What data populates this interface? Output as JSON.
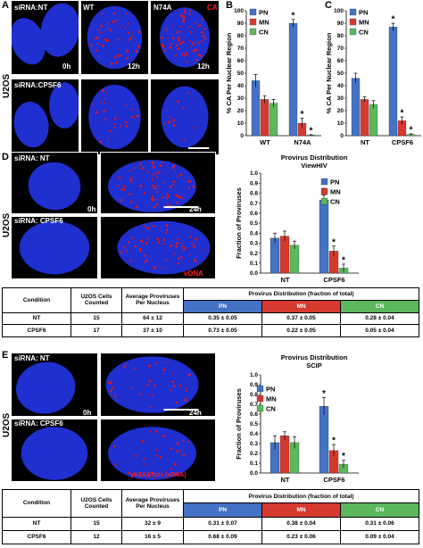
{
  "colors": {
    "pn": "#4472c4",
    "mn": "#d63a2f",
    "cn": "#5cb85c",
    "nucleus": "#1f2fd0",
    "dots": "#e01818"
  },
  "panels": {
    "a": "A",
    "b": "B",
    "c": "C",
    "d": "D",
    "e": "E"
  },
  "side_labels": {
    "a": "U2OS",
    "d": "U2OS",
    "e": "U2OS"
  },
  "panel_a": {
    "row1_label": "siRNA:NT",
    "row2_label": "siRNA:CPSF6",
    "wt": "WT",
    "n74a": "N74A",
    "ca": "CA",
    "t0": "0h",
    "t12a": "12h",
    "t12b": "12h"
  },
  "panel_d": {
    "label1": "siRNA: NT",
    "label2": "siRNA: CPSF6",
    "t0": "0h",
    "t24": "24h",
    "stain": "vDNA"
  },
  "panel_e": {
    "label1": "siRNA: NT",
    "label2": "siRNA: CPSF6",
    "t0": "0h",
    "t24": "24h",
    "stain": "γH2AX foci (vDNA)"
  },
  "table_d": {
    "headers": [
      "Condition",
      "U2OS Cells Counted",
      "Average Proviruses Per Nucleus",
      "Provirus Distribution (fraction of total)"
    ],
    "sub": [
      "PN",
      "MN",
      "CN"
    ],
    "rows": [
      [
        "NT",
        "15",
        "64 ± 12",
        "0.35 ± 0.05",
        "0.37 ± 0.05",
        "0.28 ± 0.04"
      ],
      [
        "CPSF6",
        "17",
        "37 ± 10",
        "0.73 ± 0.05",
        "0.22 ± 0.05",
        "0.05 ± 0.04"
      ]
    ]
  },
  "table_e": {
    "headers": [
      "Condition",
      "U2OS Cells Counted",
      "Average Proviruses Per Nucleus",
      "Provirus Distribution (fraction of total)"
    ],
    "sub": [
      "PN",
      "MN",
      "CN"
    ],
    "rows": [
      [
        "NT",
        "15",
        "32 ± 9",
        "0.31 ± 0.07",
        "0.38 ± 0.04",
        "0.31 ± 0.06"
      ],
      [
        "CPSF6",
        "12",
        "16 ± 5",
        "0.68 ± 0.09",
        "0.23 ± 0.06",
        "0.09 ± 0.04"
      ]
    ]
  },
  "chart_data": [
    {
      "id": "B",
      "type": "bar",
      "categories": [
        "WT",
        "N74A"
      ],
      "series": [
        {
          "name": "PN",
          "values": [
            44,
            90
          ],
          "err": [
            5,
            3
          ]
        },
        {
          "name": "MN",
          "values": [
            29,
            10
          ],
          "err": [
            3,
            4
          ]
        },
        {
          "name": "CN",
          "values": [
            26,
            0.5
          ],
          "err": [
            3,
            0.3
          ]
        }
      ],
      "ylabel": "% CA Per Nuclear Region",
      "ylim": [
        0,
        100
      ],
      "yticks": [
        0,
        10,
        20,
        30,
        40,
        50,
        60,
        70,
        80,
        90,
        100
      ],
      "stars": [
        [
          1,
          0
        ],
        [
          1,
          1
        ],
        [
          1,
          2
        ]
      ],
      "legend": "top-left"
    },
    {
      "id": "C",
      "type": "bar",
      "categories": [
        "NT",
        "CPSF6"
      ],
      "series": [
        {
          "name": "PN",
          "values": [
            46,
            87
          ],
          "err": [
            4,
            3
          ]
        },
        {
          "name": "MN",
          "values": [
            29,
            12
          ],
          "err": [
            2,
            3
          ]
        },
        {
          "name": "CN",
          "values": [
            25,
            1
          ],
          "err": [
            3,
            0.5
          ]
        }
      ],
      "ylabel": "% CA Per Nuclear Region",
      "ylim": [
        0,
        100
      ],
      "yticks": [
        0,
        10,
        20,
        30,
        40,
        50,
        60,
        70,
        80,
        90,
        100
      ],
      "stars": [
        [
          1,
          0
        ],
        [
          1,
          1
        ],
        [
          1,
          2
        ]
      ],
      "legend": "top-left"
    },
    {
      "id": "D",
      "type": "bar",
      "title": "Provirus Distribution",
      "subtitle": "ViewHIV",
      "categories": [
        "NT",
        "CPSF6"
      ],
      "series": [
        {
          "name": "PN",
          "values": [
            0.35,
            0.73
          ],
          "err": [
            0.05,
            0.05
          ]
        },
        {
          "name": "MN",
          "values": [
            0.37,
            0.22
          ],
          "err": [
            0.05,
            0.05
          ]
        },
        {
          "name": "CN",
          "values": [
            0.28,
            0.05
          ],
          "err": [
            0.04,
            0.04
          ]
        }
      ],
      "ylabel": "Fraction of Proviruses",
      "ylim": [
        0,
        1
      ],
      "yticks": [
        0,
        0.1,
        0.2,
        0.3,
        0.4,
        0.5,
        0.6,
        0.7,
        0.8,
        0.9,
        1
      ],
      "stars": [
        [
          1,
          0
        ],
        [
          1,
          1
        ],
        [
          1,
          2
        ]
      ],
      "legend": "top-right"
    },
    {
      "id": "E",
      "type": "bar",
      "title": "Provirus Distribution",
      "subtitle": "SCIP",
      "categories": [
        "NT",
        "CPSF6"
      ],
      "series": [
        {
          "name": "PN",
          "values": [
            0.31,
            0.68
          ],
          "err": [
            0.07,
            0.09
          ]
        },
        {
          "name": "MN",
          "values": [
            0.38,
            0.23
          ],
          "err": [
            0.04,
            0.06
          ]
        },
        {
          "name": "CN",
          "values": [
            0.31,
            0.09
          ],
          "err": [
            0.06,
            0.04
          ]
        }
      ],
      "ylabel": "Fraction of Proviruses",
      "ylim": [
        0,
        1
      ],
      "yticks": [
        0,
        0.1,
        0.2,
        0.3,
        0.4,
        0.5,
        0.6,
        0.7,
        0.8,
        0.9,
        1
      ],
      "stars": [
        [
          1,
          0
        ],
        [
          1,
          1
        ],
        [
          1,
          2
        ]
      ],
      "legend": "top-left"
    }
  ]
}
